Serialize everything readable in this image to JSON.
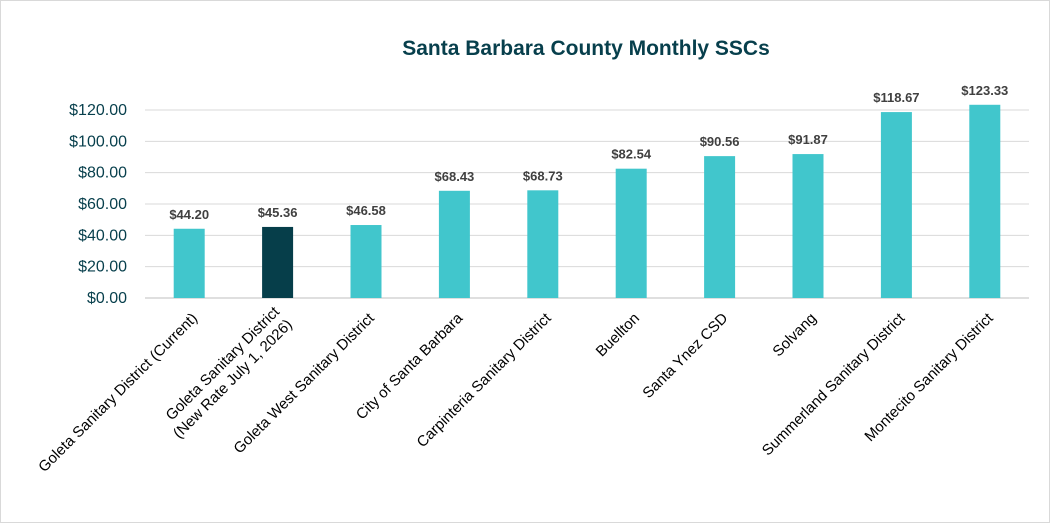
{
  "chart_data": {
    "type": "bar",
    "title": "Santa Barbara County Monthly SSCs",
    "xlabel": "",
    "ylabel": "",
    "ylim": [
      0,
      120
    ],
    "yticks": [
      "$0.00",
      "$20.00",
      "$40.00",
      "$60.00",
      "$80.00",
      "$100.00",
      "$120.00"
    ],
    "grid": true,
    "legend": "none",
    "categories": [
      [
        "Goleta Sanitary District (Current)"
      ],
      [
        "Goleta Sanitary District",
        "(New Rate July 1, 2026)"
      ],
      [
        "Goleta West Sanitary District"
      ],
      [
        "City of Santa Barbara"
      ],
      [
        "Carpinteria Sanitary District"
      ],
      [
        "Buellton"
      ],
      [
        "Santa Ynez CSD"
      ],
      [
        "Solvang"
      ],
      [
        "Summerland Sanitary District"
      ],
      [
        "Montecito Sanitary District"
      ]
    ],
    "values": [
      44.2,
      45.36,
      46.58,
      68.43,
      68.73,
      82.54,
      90.56,
      91.87,
      118.67,
      123.33
    ],
    "data_labels": [
      "$44.20",
      "$45.36",
      "$46.58",
      "$68.43",
      "$68.73",
      "$82.54",
      "$90.56",
      "$91.87",
      "$118.67",
      "$123.33"
    ],
    "colors": {
      "bar": "#41c6cc",
      "highlight_bar": "#063e4a",
      "title": "#073f4c",
      "tick_labels": "#073f4c"
    },
    "highlight_index": 1
  }
}
